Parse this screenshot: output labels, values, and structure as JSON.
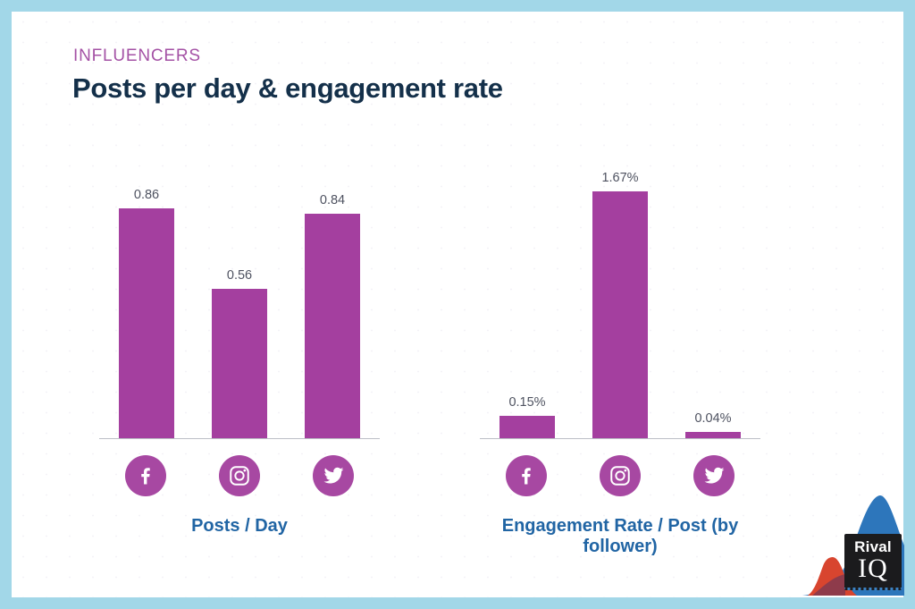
{
  "header": {
    "eyebrow": "INFLUENCERS",
    "title": "Posts per day & engagement rate"
  },
  "chart_data": [
    {
      "type": "bar",
      "title": "Posts / Day",
      "categories": [
        "Facebook",
        "Instagram",
        "Twitter"
      ],
      "values": [
        0.86,
        0.56,
        0.84
      ],
      "value_labels": [
        "0.86",
        "0.56",
        "0.84"
      ],
      "xlabel": "",
      "ylabel": "",
      "ylim": [
        0,
        0.93
      ],
      "grid": false,
      "legend": false,
      "bar_color": "#a43f9f"
    },
    {
      "type": "bar",
      "title": "Engagement Rate / Post (by follower)",
      "categories": [
        "Facebook",
        "Instagram",
        "Twitter"
      ],
      "values": [
        0.15,
        1.67,
        0.04
      ],
      "value_labels": [
        "0.15%",
        "1.67%",
        "0.04%"
      ],
      "xlabel": "",
      "ylabel": "",
      "ylim": [
        0,
        1.68
      ],
      "grid": false,
      "legend": false,
      "bar_color": "#a43f9f"
    }
  ],
  "icons": {
    "platforms": [
      "facebook",
      "instagram",
      "twitter"
    ],
    "circle_color": "#a748a2",
    "glyph_color": "#ffffff"
  },
  "logo": {
    "line1": "Rival",
    "line2": "IQ"
  },
  "colors": {
    "frame_border": "#a2d7e8",
    "background": "#ffffff",
    "eyebrow": "#a452a5",
    "title": "#14304a",
    "caption": "#2165a4",
    "bar": "#a43f9f",
    "value_label": "#4e5260",
    "axis_line": "#bcbec6",
    "decor_blue": "#2d76bb",
    "decor_red": "#d8452f",
    "decor_overlap": "#8e3b4b",
    "logo_bg": "#1b1b1d"
  }
}
